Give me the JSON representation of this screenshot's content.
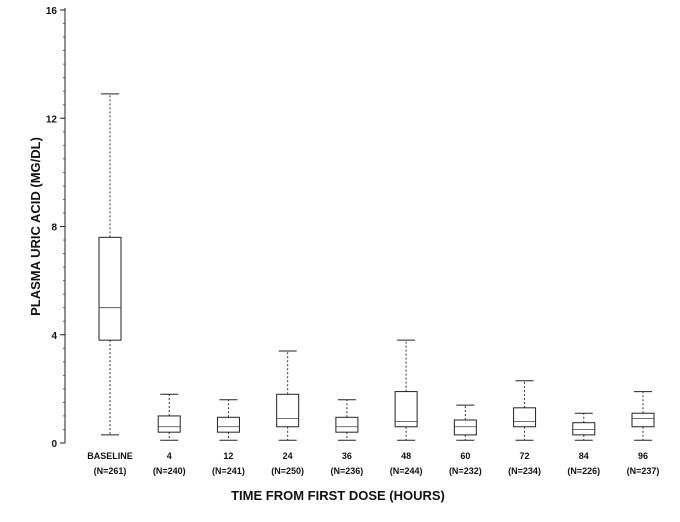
{
  "chart_data": {
    "type": "boxplot",
    "ylabel": "PLASMA URIC ACID (MG/DL)",
    "xlabel": "TIME FROM FIRST DOSE (HOURS)",
    "ylim": [
      0,
      16
    ],
    "yticks": [
      0,
      4,
      8,
      12,
      16
    ],
    "categories": [
      {
        "name": "BASELINE",
        "n": "(N=261)"
      },
      {
        "name": "4",
        "n": "(N=240)"
      },
      {
        "name": "12",
        "n": "(N=241)"
      },
      {
        "name": "24",
        "n": "(N=250)"
      },
      {
        "name": "36",
        "n": "(N=236)"
      },
      {
        "name": "48",
        "n": "(N=244)"
      },
      {
        "name": "60",
        "n": "(N=232)"
      },
      {
        "name": "72",
        "n": "(N=234)"
      },
      {
        "name": "84",
        "n": "(N=226)"
      },
      {
        "name": "96",
        "n": "(N=237)"
      }
    ],
    "boxes": [
      {
        "min": 0.3,
        "q1": 3.8,
        "median": 5.0,
        "q3": 7.6,
        "max": 12.9
      },
      {
        "min": 0.1,
        "q1": 0.4,
        "median": 0.6,
        "q3": 1.0,
        "max": 1.8
      },
      {
        "min": 0.1,
        "q1": 0.4,
        "median": 0.6,
        "q3": 0.95,
        "max": 1.6
      },
      {
        "min": 0.1,
        "q1": 0.6,
        "median": 0.9,
        "q3": 1.8,
        "max": 3.4
      },
      {
        "min": 0.1,
        "q1": 0.4,
        "median": 0.6,
        "q3": 0.95,
        "max": 1.6
      },
      {
        "min": 0.1,
        "q1": 0.6,
        "median": 0.8,
        "q3": 1.9,
        "max": 3.8
      },
      {
        "min": 0.1,
        "q1": 0.3,
        "median": 0.6,
        "q3": 0.85,
        "max": 1.4
      },
      {
        "min": 0.1,
        "q1": 0.6,
        "median": 0.8,
        "q3": 1.3,
        "max": 2.3
      },
      {
        "min": 0.1,
        "q1": 0.3,
        "median": 0.5,
        "q3": 0.75,
        "max": 1.1
      },
      {
        "min": 0.1,
        "q1": 0.6,
        "median": 0.9,
        "q3": 1.1,
        "max": 1.9
      }
    ]
  }
}
